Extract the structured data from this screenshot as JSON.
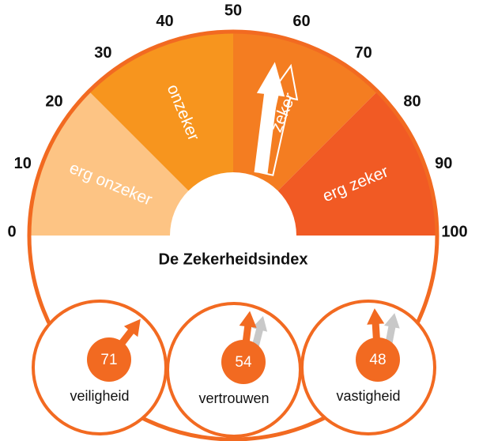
{
  "chart_data": {
    "type": "gauge",
    "title": "De Zekerheidsindex",
    "xlim": [
      0,
      100
    ],
    "xticks": [
      0,
      10,
      20,
      30,
      40,
      50,
      60,
      70,
      80,
      90,
      100
    ],
    "bands": [
      {
        "label": "erg onzeker",
        "from": 0,
        "to": 25,
        "color": "#fdc484"
      },
      {
        "label": "onzeker",
        "from": 25,
        "to": 50,
        "color": "#f7951e"
      },
      {
        "label": "zeker",
        "from": 50,
        "to": 75,
        "color": "#f47d21"
      },
      {
        "label": "erg zeker",
        "from": 75,
        "to": 100,
        "color": "#f15a24"
      }
    ],
    "value": 54,
    "previous": 57,
    "color": "#f26a21",
    "previous_color": "#c8c8c8",
    "gauges": [
      {
        "name": "veiligheid",
        "value": 71
      },
      {
        "name": "vertrouwen",
        "value": 54,
        "previous": 58
      },
      {
        "name": "vastigheid",
        "value": 48,
        "previous": 56
      }
    ]
  }
}
